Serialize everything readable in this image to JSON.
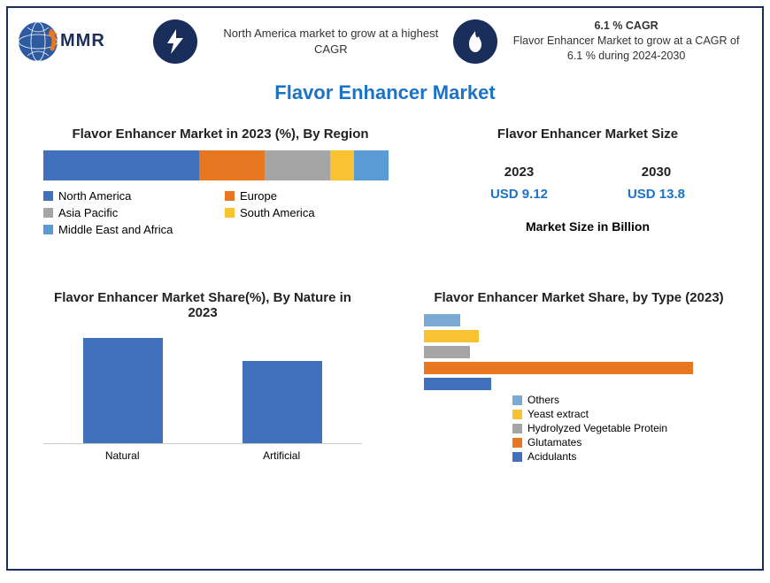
{
  "brand": {
    "logo_text": "MMR"
  },
  "header": {
    "item1": {
      "text": "North America market to grow at a highest CAGR"
    },
    "item2": {
      "title": "6.1 % CAGR",
      "text": "Flavor Enhancer Market to grow at a CAGR of 6.1 % during 2024-2030"
    }
  },
  "main_title": "Flavor Enhancer Market",
  "region": {
    "title": "Flavor Enhancer Market in 2023 (%), By Region",
    "segments": [
      {
        "label": "North America",
        "value": 45,
        "color": "#4170bd"
      },
      {
        "label": "Europe",
        "value": 19,
        "color": "#e87722"
      },
      {
        "label": "Asia Pacific",
        "value": 19,
        "color": "#a5a5a5"
      },
      {
        "label": "South America",
        "value": 7,
        "color": "#f8c233"
      },
      {
        "label": "Middle East and Africa",
        "value": 10,
        "color": "#5b9bd5"
      }
    ]
  },
  "market_size": {
    "title": "Flavor Enhancer Market Size",
    "years": [
      {
        "year": "2023",
        "value": "USD 9.12"
      },
      {
        "year": "2030",
        "value": "USD 13.8"
      }
    ],
    "caption": "Market Size in Billion",
    "value_color": "#1a73c7"
  },
  "nature": {
    "title": "Flavor Enhancer Market Share(%), By Nature in 2023",
    "bars": [
      {
        "label": "Natural",
        "value": 60
      },
      {
        "label": "Artificial",
        "value": 47
      }
    ],
    "bar_color": "#4170bd",
    "ymax": 65
  },
  "type_share": {
    "title": "Flavor Enhancer Market Share, by Type (2023)",
    "bars": [
      {
        "label": "Others",
        "value": 12,
        "color": "#7aaad4"
      },
      {
        "label": "Yeast extract",
        "value": 18,
        "color": "#f8c233"
      },
      {
        "label": "Hydrolyzed Vegetable Protein",
        "value": 15,
        "color": "#a5a5a5"
      },
      {
        "label": "Glutamates",
        "value": 88,
        "color": "#e87722"
      },
      {
        "label": "Acidulants",
        "value": 22,
        "color": "#4170bd"
      }
    ],
    "xmax": 100
  },
  "colors": {
    "frame_border": "#1a2e5c",
    "icon_circle": "#1a2e5c",
    "title": "#1a73c7"
  }
}
